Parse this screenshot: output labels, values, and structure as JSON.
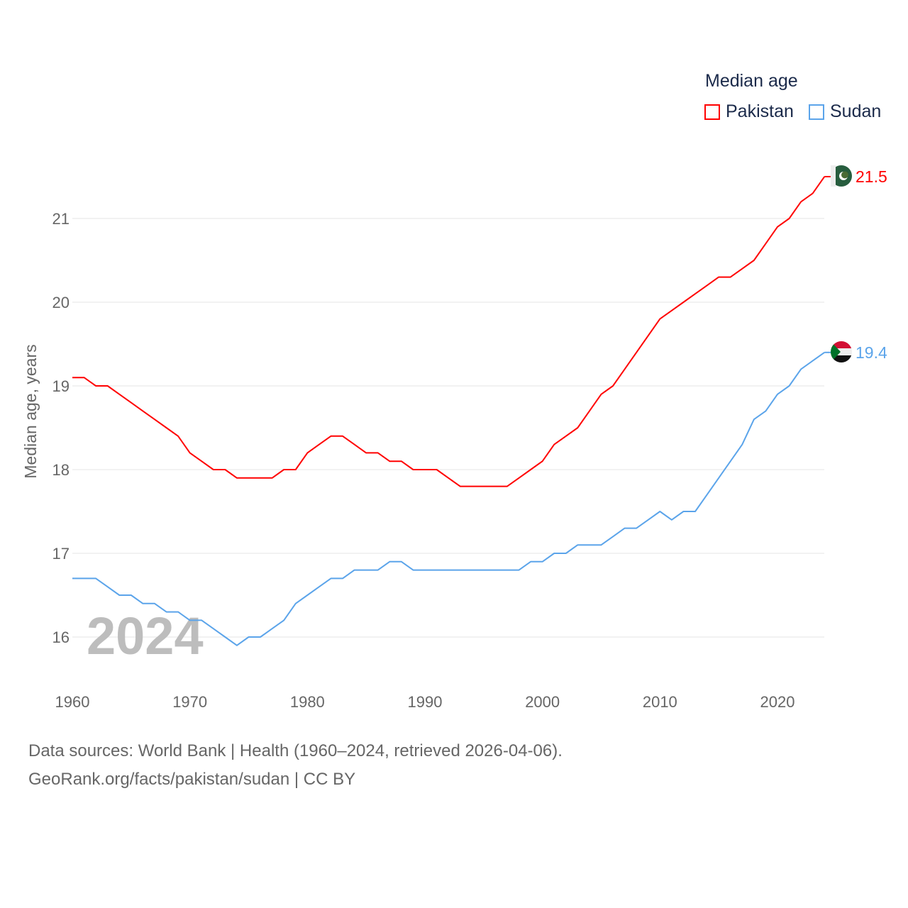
{
  "chart_data": {
    "type": "line",
    "title": "Median age",
    "ylabel": "Median age, years",
    "xlabel": "",
    "xlim": [
      1960,
      2024
    ],
    "ylim": [
      15.5,
      21.8
    ],
    "yticks": [
      16,
      17,
      18,
      19,
      20,
      21
    ],
    "xticks": [
      1960,
      1970,
      1980,
      1990,
      2000,
      2010,
      2020
    ],
    "grid": true,
    "legend_position": "top-right",
    "year_watermark": "2024",
    "x": [
      1960,
      1961,
      1962,
      1963,
      1964,
      1965,
      1966,
      1967,
      1968,
      1969,
      1970,
      1971,
      1972,
      1973,
      1974,
      1975,
      1976,
      1977,
      1978,
      1979,
      1980,
      1981,
      1982,
      1983,
      1984,
      1985,
      1986,
      1987,
      1988,
      1989,
      1990,
      1991,
      1992,
      1993,
      1994,
      1995,
      1996,
      1997,
      1998,
      1999,
      2000,
      2001,
      2002,
      2003,
      2004,
      2005,
      2006,
      2007,
      2008,
      2009,
      2010,
      2011,
      2012,
      2013,
      2014,
      2015,
      2016,
      2017,
      2018,
      2019,
      2020,
      2021,
      2022,
      2023,
      2024
    ],
    "series": [
      {
        "name": "Pakistan",
        "color": "#ff0000",
        "end_label": "21.5",
        "values": [
          19.1,
          19.1,
          19.0,
          19.0,
          18.9,
          18.8,
          18.7,
          18.6,
          18.5,
          18.4,
          18.2,
          18.1,
          18.0,
          18.0,
          17.9,
          17.9,
          17.9,
          17.9,
          18.0,
          18.0,
          18.2,
          18.3,
          18.4,
          18.4,
          18.3,
          18.2,
          18.2,
          18.1,
          18.1,
          18.0,
          18.0,
          18.0,
          17.9,
          17.8,
          17.8,
          17.8,
          17.8,
          17.8,
          17.9,
          18.0,
          18.1,
          18.3,
          18.4,
          18.5,
          18.7,
          18.9,
          19.0,
          19.2,
          19.4,
          19.6,
          19.8,
          19.9,
          20.0,
          20.1,
          20.2,
          20.3,
          20.3,
          20.4,
          20.5,
          20.7,
          20.9,
          21.0,
          21.2,
          21.3,
          21.5
        ]
      },
      {
        "name": "Sudan",
        "color": "#5ba4ea",
        "end_label": "19.4",
        "values": [
          16.7,
          16.7,
          16.7,
          16.6,
          16.5,
          16.5,
          16.4,
          16.4,
          16.3,
          16.3,
          16.2,
          16.2,
          16.1,
          16.0,
          15.9,
          16.0,
          16.0,
          16.1,
          16.2,
          16.4,
          16.5,
          16.6,
          16.7,
          16.7,
          16.8,
          16.8,
          16.8,
          16.9,
          16.9,
          16.8,
          16.8,
          16.8,
          16.8,
          16.8,
          16.8,
          16.8,
          16.8,
          16.8,
          16.8,
          16.9,
          16.9,
          17.0,
          17.0,
          17.1,
          17.1,
          17.1,
          17.2,
          17.3,
          17.3,
          17.4,
          17.5,
          17.4,
          17.5,
          17.5,
          17.7,
          17.9,
          18.1,
          18.3,
          18.6,
          18.7,
          18.9,
          19.0,
          19.2,
          19.3,
          19.4
        ]
      }
    ]
  },
  "footer": {
    "line1": "Data sources: World Bank | Health (1960–2024, retrieved 2026-04-06).",
    "line2": "GeoRank.org/facts/pakistan/sudan | CC BY"
  }
}
